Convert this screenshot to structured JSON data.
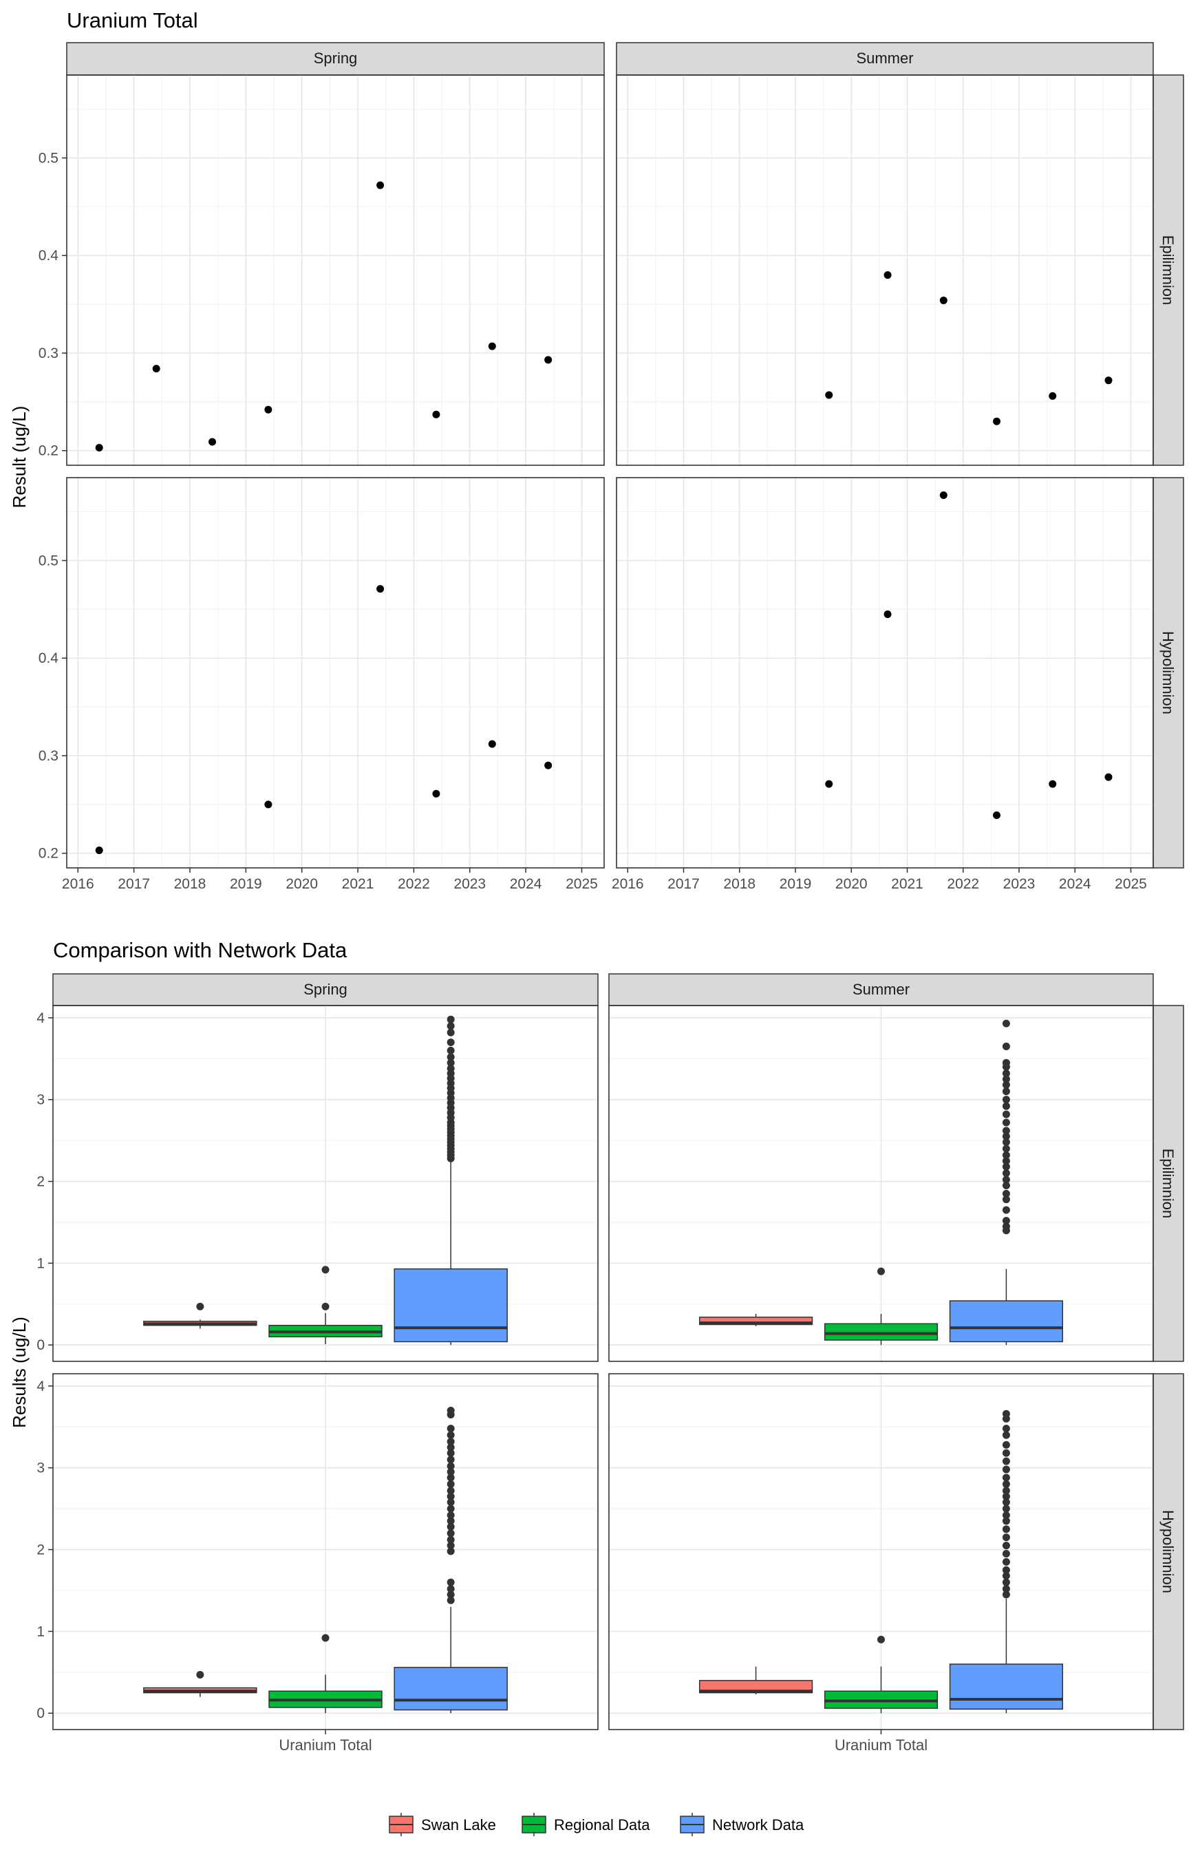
{
  "figure1": {
    "title": "Uranium Total",
    "ylabel": "Result (ug/L)",
    "col_labels": [
      "Spring",
      "Summer"
    ],
    "row_labels": [
      "Epilimnion",
      "Hypolimnion"
    ],
    "x_ticks": [
      "2016",
      "2017",
      "2018",
      "2019",
      "2020",
      "2021",
      "2022",
      "2023",
      "2024",
      "2025"
    ],
    "y_ticks": [
      "0.2",
      "0.3",
      "0.4",
      "0.5"
    ]
  },
  "figure2": {
    "title": "Comparison with Network Data",
    "ylabel": "Results (ug/L)",
    "col_labels": [
      "Spring",
      "Summer"
    ],
    "row_labels": [
      "Epilimnion",
      "Hypolimnion"
    ],
    "x_label": "Uranium Total",
    "y_ticks": [
      "0",
      "1",
      "2",
      "3",
      "4"
    ]
  },
  "legend": {
    "items": [
      {
        "label": "Swan Lake",
        "color": "#F8766D"
      },
      {
        "label": "Regional Data",
        "color": "#00BA38"
      },
      {
        "label": "Network Data",
        "color": "#619CFF"
      }
    ]
  },
  "chart_data": [
    {
      "type": "scatter",
      "title": "Uranium Total",
      "ylabel": "Result (ug/L)",
      "xlim": [
        2015.8,
        2025.4
      ],
      "ylim": [
        0.185,
        0.585
      ],
      "panels": [
        {
          "season": "Spring",
          "layer": "Epilimnion",
          "points": [
            [
              2016.38,
              0.203
            ],
            [
              2017.4,
              0.284
            ],
            [
              2018.4,
              0.209
            ],
            [
              2019.4,
              0.242
            ],
            [
              2021.4,
              0.472
            ],
            [
              2022.4,
              0.237
            ],
            [
              2023.4,
              0.307
            ],
            [
              2024.4,
              0.293
            ]
          ]
        },
        {
          "season": "Summer",
          "layer": "Epilimnion",
          "points": [
            [
              2019.6,
              0.257
            ],
            [
              2020.65,
              0.38
            ],
            [
              2021.65,
              0.354
            ],
            [
              2022.6,
              0.23
            ],
            [
              2023.6,
              0.256
            ],
            [
              2024.6,
              0.272
            ]
          ]
        },
        {
          "season": "Spring",
          "layer": "Hypolimnion",
          "points": [
            [
              2016.38,
              0.203
            ],
            [
              2019.4,
              0.25
            ],
            [
              2021.4,
              0.471
            ],
            [
              2022.4,
              0.261
            ],
            [
              2023.4,
              0.312
            ],
            [
              2024.4,
              0.29
            ]
          ]
        },
        {
          "season": "Summer",
          "layer": "Hypolimnion",
          "points": [
            [
              2019.6,
              0.271
            ],
            [
              2020.65,
              0.445
            ],
            [
              2021.65,
              0.567
            ],
            [
              2022.6,
              0.239
            ],
            [
              2023.6,
              0.271
            ],
            [
              2024.6,
              0.278
            ]
          ]
        }
      ]
    },
    {
      "type": "box",
      "title": "Comparison with Network Data",
      "ylabel": "Results (ug/L)",
      "x": "Uranium Total",
      "ylim": [
        -0.2,
        4.15
      ],
      "series_names": [
        "Swan Lake",
        "Regional Data",
        "Network Data"
      ],
      "panels": [
        {
          "season": "Spring",
          "layer": "Epilimnion",
          "boxes": [
            {
              "name": "Swan Lake",
              "q1": 0.24,
              "median": 0.26,
              "q3": 0.29,
              "lo": 0.2,
              "hi": 0.31,
              "outliers": [
                0.47
              ]
            },
            {
              "name": "Regional Data",
              "q1": 0.1,
              "median": 0.16,
              "q3": 0.24,
              "lo": 0.01,
              "hi": 0.39,
              "outliers": [
                0.47,
                0.92
              ]
            },
            {
              "name": "Network Data",
              "q1": 0.04,
              "median": 0.21,
              "q3": 0.93,
              "lo": 0.0,
              "hi": 2.25,
              "outliers": [
                2.28,
                2.32,
                2.36,
                2.4,
                2.44,
                2.48,
                2.52,
                2.56,
                2.6,
                2.64,
                2.68,
                2.72,
                2.78,
                2.84,
                2.9,
                2.96,
                3.02,
                3.08,
                3.14,
                3.2,
                3.26,
                3.32,
                3.38,
                3.45,
                3.52,
                3.6,
                3.7,
                3.82,
                3.9,
                3.98
              ]
            }
          ]
        },
        {
          "season": "Summer",
          "layer": "Epilimnion",
          "boxes": [
            {
              "name": "Swan Lake",
              "q1": 0.25,
              "median": 0.27,
              "q3": 0.34,
              "lo": 0.23,
              "hi": 0.38,
              "outliers": []
            },
            {
              "name": "Regional Data",
              "q1": 0.06,
              "median": 0.14,
              "q3": 0.26,
              "lo": 0.0,
              "hi": 0.38,
              "outliers": [
                0.9
              ]
            },
            {
              "name": "Network Data",
              "q1": 0.04,
              "median": 0.21,
              "q3": 0.54,
              "lo": 0.0,
              "hi": 0.93,
              "outliers": [
                1.4,
                1.45,
                1.52,
                1.65,
                1.78,
                1.85,
                1.95,
                2.02,
                2.1,
                2.18,
                2.25,
                2.32,
                2.4,
                2.48,
                2.55,
                2.62,
                2.72,
                2.82,
                2.92,
                3.0,
                3.1,
                3.18,
                3.25,
                3.32,
                3.4,
                3.45,
                3.65,
                3.93
              ]
            }
          ]
        },
        {
          "season": "Spring",
          "layer": "Hypolimnion",
          "boxes": [
            {
              "name": "Swan Lake",
              "q1": 0.25,
              "median": 0.27,
              "q3": 0.31,
              "lo": 0.2,
              "hi": 0.31,
              "outliers": [
                0.47
              ]
            },
            {
              "name": "Regional Data",
              "q1": 0.07,
              "median": 0.16,
              "q3": 0.27,
              "lo": 0.0,
              "hi": 0.47,
              "outliers": [
                0.92
              ]
            },
            {
              "name": "Network Data",
              "q1": 0.04,
              "median": 0.16,
              "q3": 0.56,
              "lo": 0.0,
              "hi": 1.3,
              "outliers": [
                1.38,
                1.45,
                1.52,
                1.6,
                1.98,
                2.05,
                2.12,
                2.2,
                2.28,
                2.35,
                2.42,
                2.5,
                2.58,
                2.65,
                2.72,
                2.8,
                2.88,
                2.95,
                3.02,
                3.1,
                3.18,
                3.25,
                3.32,
                3.4,
                3.48,
                3.65,
                3.7
              ]
            }
          ]
        },
        {
          "season": "Summer",
          "layer": "Hypolimnion",
          "boxes": [
            {
              "name": "Swan Lake",
              "q1": 0.25,
              "median": 0.27,
              "q3": 0.4,
              "lo": 0.23,
              "hi": 0.57,
              "outliers": []
            },
            {
              "name": "Regional Data",
              "q1": 0.06,
              "median": 0.15,
              "q3": 0.27,
              "lo": 0.0,
              "hi": 0.57,
              "outliers": [
                0.9
              ]
            },
            {
              "name": "Network Data",
              "q1": 0.05,
              "median": 0.17,
              "q3": 0.6,
              "lo": 0.0,
              "hi": 1.4,
              "outliers": [
                1.45,
                1.52,
                1.6,
                1.68,
                1.75,
                1.85,
                1.95,
                2.05,
                2.15,
                2.25,
                2.35,
                2.42,
                2.5,
                2.58,
                2.65,
                2.72,
                2.8,
                2.88,
                2.98,
                3.08,
                3.18,
                3.28,
                3.4,
                3.48,
                3.6,
                3.66
              ]
            }
          ]
        }
      ]
    }
  ]
}
